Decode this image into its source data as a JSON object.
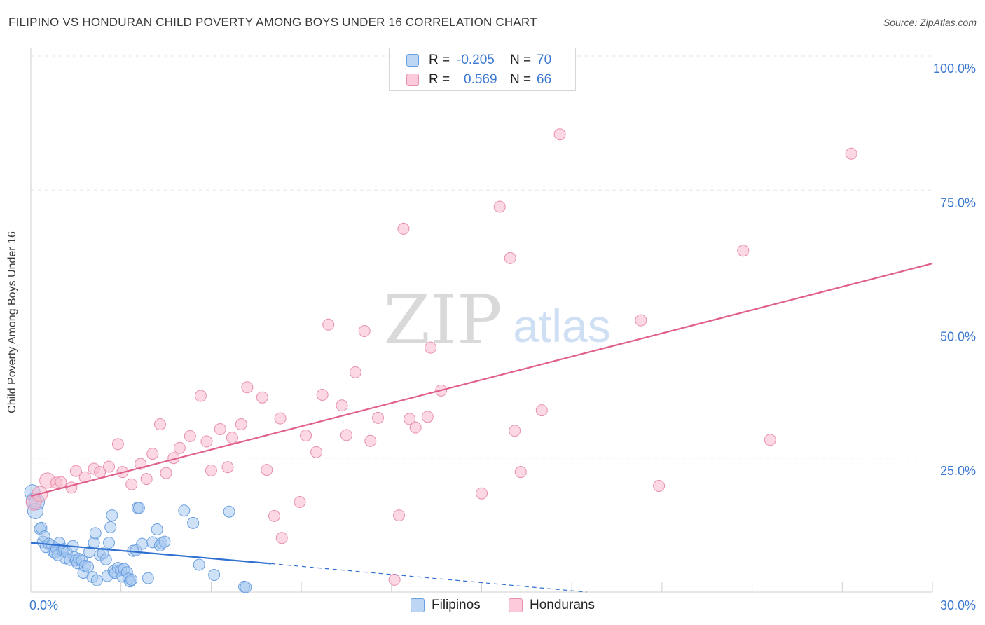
{
  "header": {
    "title": "FILIPINO VS HONDURAN CHILD POVERTY AMONG BOYS UNDER 16 CORRELATION CHART",
    "source": "Source: ZipAtlas.com"
  },
  "watermark": {
    "zip": "ZIP",
    "atlas": "atlas"
  },
  "legend": {
    "rows": [
      {
        "r_label": "R =",
        "r_value": "-0.205",
        "n_label": "N =",
        "n_value": "70",
        "color": "#a8c8f0"
      },
      {
        "r_label": "R =",
        "r_value": "0.569",
        "n_label": "N =",
        "n_value": "66",
        "color": "#f8b8cc"
      }
    ]
  },
  "bottom_legend": [
    {
      "label": "Filipinos",
      "color": "#a8c8f0"
    },
    {
      "label": "Hondurans",
      "color": "#f8b8cc"
    }
  ],
  "chart_data": {
    "type": "scatter",
    "ylabel": "Child Poverty Among Boys Under 16",
    "xlim": [
      0,
      30
    ],
    "ylim": [
      0,
      100
    ],
    "x_tick_labels": [
      {
        "value": 0,
        "label": "0.0%"
      },
      {
        "value": 30,
        "label": "30.0%"
      }
    ],
    "y_tick_labels": [
      {
        "value": 100,
        "label": "100.0%"
      },
      {
        "value": 75,
        "label": "75.0%"
      },
      {
        "value": 50,
        "label": "50.0%"
      },
      {
        "value": 25,
        "label": "25.0%"
      }
    ],
    "grid": true,
    "series": [
      {
        "name": "Filipinos",
        "color": "#a8c8f0",
        "stroke": "#6a9fe0",
        "line_color": "#3070d0",
        "trend": {
          "x0": 0,
          "y0": 9.2,
          "x1": 8,
          "y1": 5.3,
          "dash_x1": 18.5,
          "dash_y1": 0
        },
        "points": [
          [
            0.05,
            18.6
          ],
          [
            0.1,
            17.0
          ],
          [
            0.15,
            15.1
          ],
          [
            0.2,
            16.8
          ],
          [
            0.3,
            11.8
          ],
          [
            0.35,
            12.0
          ],
          [
            0.4,
            9.4
          ],
          [
            0.45,
            10.4
          ],
          [
            0.5,
            8.4
          ],
          [
            0.6,
            9.0
          ],
          [
            0.7,
            8.7
          ],
          [
            0.75,
            7.5
          ],
          [
            0.8,
            7.3
          ],
          [
            0.85,
            8.1
          ],
          [
            0.9,
            6.9
          ],
          [
            0.95,
            9.2
          ],
          [
            1.05,
            7.8
          ],
          [
            1.1,
            8.0
          ],
          [
            1.15,
            6.3
          ],
          [
            1.2,
            7.4
          ],
          [
            1.3,
            6.0
          ],
          [
            1.4,
            8.6
          ],
          [
            1.45,
            6.5
          ],
          [
            1.5,
            5.9
          ],
          [
            1.55,
            5.4
          ],
          [
            1.6,
            6.2
          ],
          [
            1.7,
            5.9
          ],
          [
            1.75,
            3.6
          ],
          [
            1.8,
            4.9
          ],
          [
            1.9,
            4.7
          ],
          [
            1.95,
            7.5
          ],
          [
            2.05,
            2.8
          ],
          [
            2.1,
            9.2
          ],
          [
            2.15,
            11.0
          ],
          [
            2.2,
            2.2
          ],
          [
            2.3,
            6.9
          ],
          [
            2.4,
            7.2
          ],
          [
            2.5,
            6.1
          ],
          [
            2.55,
            3.0
          ],
          [
            2.6,
            9.2
          ],
          [
            2.65,
            12.1
          ],
          [
            2.7,
            14.3
          ],
          [
            2.75,
            3.9
          ],
          [
            2.8,
            3.6
          ],
          [
            2.9,
            4.5
          ],
          [
            3.0,
            4.1
          ],
          [
            3.05,
            2.9
          ],
          [
            3.1,
            4.3
          ],
          [
            3.2,
            3.7
          ],
          [
            3.25,
            2.5
          ],
          [
            3.3,
            2.0
          ],
          [
            3.35,
            2.3
          ],
          [
            3.4,
            7.7
          ],
          [
            3.5,
            7.8
          ],
          [
            3.55,
            15.7
          ],
          [
            3.6,
            15.7
          ],
          [
            3.7,
            9.0
          ],
          [
            3.9,
            2.6
          ],
          [
            4.05,
            9.3
          ],
          [
            4.2,
            11.7
          ],
          [
            4.3,
            8.7
          ],
          [
            4.35,
            9.1
          ],
          [
            4.45,
            9.4
          ],
          [
            5.1,
            15.2
          ],
          [
            5.4,
            12.9
          ],
          [
            5.6,
            5.1
          ],
          [
            6.1,
            3.2
          ],
          [
            6.6,
            15.0
          ],
          [
            7.1,
            1.0
          ],
          [
            7.15,
            0.9
          ]
        ]
      },
      {
        "name": "Hondurans",
        "color": "#f8b8cc",
        "stroke": "#e890ac",
        "line_color": "#e0608a",
        "trend": {
          "x0": 0,
          "y0": 17.9,
          "x1": 30,
          "y1": 61.3
        },
        "points": [
          [
            0.1,
            16.7
          ],
          [
            0.3,
            18.3
          ],
          [
            0.55,
            20.8
          ],
          [
            0.85,
            20.4
          ],
          [
            1.0,
            20.5
          ],
          [
            1.35,
            19.5
          ],
          [
            1.5,
            22.6
          ],
          [
            1.8,
            21.4
          ],
          [
            2.1,
            23.0
          ],
          [
            2.3,
            22.4
          ],
          [
            2.6,
            23.4
          ],
          [
            2.9,
            27.6
          ],
          [
            3.05,
            22.4
          ],
          [
            3.35,
            20.1
          ],
          [
            3.65,
            23.9
          ],
          [
            3.85,
            21.1
          ],
          [
            4.05,
            25.8
          ],
          [
            4.3,
            31.3
          ],
          [
            4.5,
            22.2
          ],
          [
            4.75,
            25.0
          ],
          [
            4.95,
            26.9
          ],
          [
            5.3,
            29.1
          ],
          [
            5.65,
            36.6
          ],
          [
            5.85,
            28.1
          ],
          [
            6.0,
            22.7
          ],
          [
            6.3,
            30.4
          ],
          [
            6.55,
            23.3
          ],
          [
            6.7,
            28.8
          ],
          [
            7.0,
            31.3
          ],
          [
            7.2,
            38.2
          ],
          [
            7.7,
            36.3
          ],
          [
            7.85,
            22.8
          ],
          [
            8.1,
            14.2
          ],
          [
            8.3,
            32.4
          ],
          [
            8.35,
            10.1
          ],
          [
            8.95,
            16.8
          ],
          [
            9.15,
            29.2
          ],
          [
            9.5,
            26.1
          ],
          [
            9.7,
            36.8
          ],
          [
            9.9,
            49.9
          ],
          [
            10.35,
            34.8
          ],
          [
            10.5,
            29.3
          ],
          [
            10.8,
            41.0
          ],
          [
            11.1,
            48.7
          ],
          [
            11.3,
            28.2
          ],
          [
            11.55,
            32.5
          ],
          [
            12.1,
            2.3
          ],
          [
            12.25,
            14.3
          ],
          [
            12.4,
            67.8
          ],
          [
            12.6,
            32.3
          ],
          [
            12.8,
            30.7
          ],
          [
            13.2,
            32.7
          ],
          [
            13.3,
            45.6
          ],
          [
            13.65,
            37.6
          ],
          [
            15.0,
            18.4
          ],
          [
            15.6,
            71.9
          ],
          [
            15.95,
            62.3
          ],
          [
            16.1,
            30.1
          ],
          [
            16.3,
            22.4
          ],
          [
            17.0,
            33.9
          ],
          [
            17.6,
            85.4
          ],
          [
            20.3,
            50.7
          ],
          [
            20.9,
            19.8
          ],
          [
            23.7,
            63.7
          ],
          [
            24.6,
            28.4
          ],
          [
            27.3,
            81.8
          ]
        ]
      }
    ]
  }
}
